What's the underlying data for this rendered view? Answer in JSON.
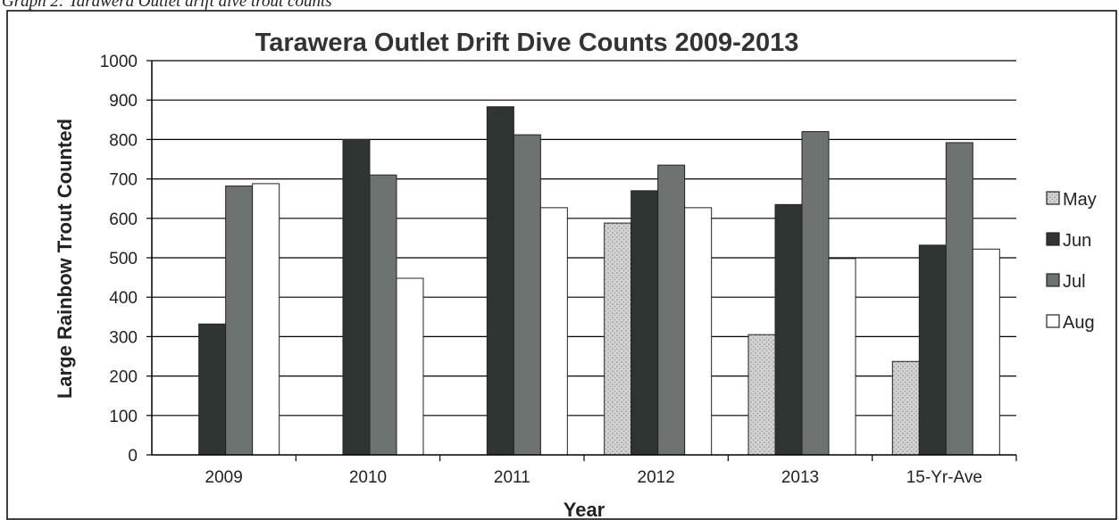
{
  "caption": "Graph 2: Tarawera Outlet drift dive trout counts",
  "chart_data": {
    "type": "bar",
    "title": "Tarawera Outlet Drift Dive Counts 2009-2013",
    "xlabel": "Year",
    "ylabel": "Large Rainbow Trout Counted",
    "ylim": [
      0,
      1000
    ],
    "yticks": [
      0,
      100,
      200,
      300,
      400,
      500,
      600,
      700,
      800,
      900,
      1000
    ],
    "categories": [
      "2009",
      "2010",
      "2011",
      "2012",
      "2013",
      "15-Yr-Ave"
    ],
    "series": [
      {
        "name": "May",
        "values": [
          null,
          null,
          null,
          588,
          305,
          237
        ],
        "color": "#c8c8c8",
        "pattern": "stipple"
      },
      {
        "name": "Jun",
        "values": [
          332,
          800,
          883,
          670,
          635,
          532
        ],
        "color": "#2e3532"
      },
      {
        "name": "Jul",
        "values": [
          682,
          710,
          812,
          735,
          820,
          792
        ],
        "color": "#6d7370"
      },
      {
        "name": "Aug",
        "values": [
          688,
          448,
          627,
          627,
          498,
          522
        ],
        "color": "#ffffff"
      }
    ],
    "grid": true,
    "legend": "right"
  }
}
